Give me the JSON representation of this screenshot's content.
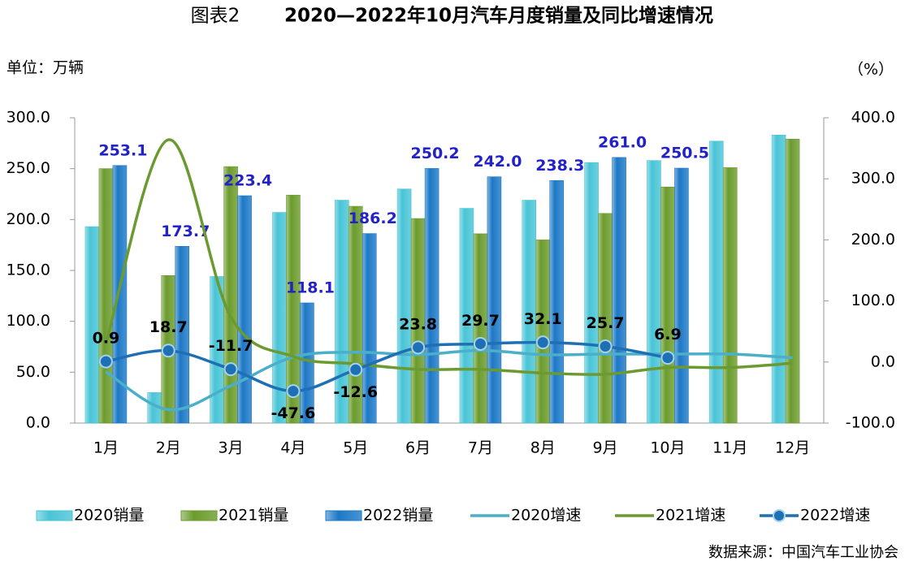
{
  "chart_data": {
    "type": "bar-line",
    "figure_label": "图表2",
    "title": "2020—2022年10月汽车月度销量及同比增速情况",
    "y_unit": "单位：万辆",
    "y2_unit": "（%）",
    "source": "数据来源：中国汽车工业协会",
    "categories": [
      "1月",
      "2月",
      "3月",
      "4月",
      "5月",
      "6月",
      "7月",
      "8月",
      "9月",
      "10月",
      "11月",
      "12月"
    ],
    "ylim": [
      0,
      300
    ],
    "yticks": [
      {
        "value": 0,
        "label": "0.0"
      },
      {
        "value": 50,
        "label": "50.0"
      },
      {
        "value": 100,
        "label": "100.0"
      },
      {
        "value": 150,
        "label": "150.0"
      },
      {
        "value": 200,
        "label": "200.0"
      },
      {
        "value": 250,
        "label": "250.0"
      },
      {
        "value": 300,
        "label": "300.0"
      }
    ],
    "y2lim": [
      -100,
      400
    ],
    "y2ticks": [
      {
        "value": -100,
        "label": "-100.0"
      },
      {
        "value": 0,
        "label": "0.0"
      },
      {
        "value": 100,
        "label": "100.0"
      },
      {
        "value": 200,
        "label": "200.0"
      },
      {
        "value": 300,
        "label": "300.0"
      },
      {
        "value": 400,
        "label": "400.0"
      }
    ],
    "series": [
      {
        "name": "2020销量",
        "kind": "bar",
        "color": "#48c4d6",
        "values": [
          193,
          30,
          144,
          207,
          219,
          230,
          211,
          219,
          256,
          258,
          277,
          283
        ]
      },
      {
        "name": "2021销量",
        "kind": "bar",
        "color": "#6b9b2c",
        "values": [
          250,
          145,
          252,
          224,
          213,
          201,
          186,
          180,
          206,
          232,
          251,
          279
        ]
      },
      {
        "name": "2022销量",
        "kind": "bar",
        "color": "#1c78c6",
        "values": [
          253.1,
          173.7,
          223.4,
          118.1,
          186.2,
          250.2,
          242.0,
          238.3,
          261.0,
          250.5,
          null,
          null
        ],
        "value_labels": [
          "253.1",
          "173.7",
          "223.4",
          "118.1",
          "186.2",
          "250.2",
          "242.0",
          "238.3",
          "261.0",
          "250.5",
          null,
          null
        ],
        "label_color": "#2222c8"
      },
      {
        "name": "2020增速",
        "kind": "line",
        "axis": "y2",
        "color": "#4aafc9",
        "values": [
          -16,
          -78,
          -39,
          8,
          16,
          12,
          19,
          12,
          13,
          13,
          13,
          7
        ]
      },
      {
        "name": "2021增速",
        "kind": "line",
        "axis": "y2",
        "color": "#6b9b30",
        "values": [
          30,
          364,
          74,
          9,
          -3,
          -12,
          -12,
          -18,
          -20,
          -9,
          -9,
          -2
        ]
      },
      {
        "name": "2022增速",
        "kind": "line",
        "axis": "y2",
        "color": "#1f6fb5",
        "markers": true,
        "values": [
          0.9,
          18.7,
          -11.7,
          -47.6,
          -12.6,
          23.8,
          29.7,
          32.1,
          25.7,
          6.9,
          null,
          null
        ],
        "label_color": "#000000"
      }
    ]
  }
}
